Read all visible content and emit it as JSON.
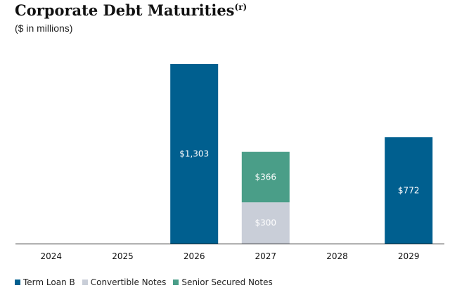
{
  "title": "Corporate Debt Maturities",
  "title_superscript": "(r)",
  "subtitle": "($ in millions)",
  "chart_data": {
    "type": "bar",
    "stacked": true,
    "categories": [
      "2024",
      "2025",
      "2026",
      "2027",
      "2028",
      "2029"
    ],
    "series": [
      {
        "name": "Term Loan B",
        "values": [
          0,
          0,
          1303,
          0,
          0,
          772
        ],
        "labels": [
          "",
          "",
          "$1,303",
          "",
          "",
          "$772"
        ],
        "color": "#005f8f"
      },
      {
        "name": "Convertible Notes",
        "values": [
          0,
          0,
          0,
          300,
          0,
          0
        ],
        "labels": [
          "",
          "",
          "",
          "$300",
          "",
          ""
        ],
        "color": "#c9ced8"
      },
      {
        "name": "Senior Secured Notes",
        "values": [
          0,
          0,
          0,
          366,
          0,
          0
        ],
        "labels": [
          "",
          "",
          "",
          "$366",
          "",
          ""
        ],
        "color": "#4a9e88"
      }
    ],
    "ylim": [
      0,
      1400
    ],
    "grid": false,
    "legend_position": "bottom-left",
    "label_color": "#ffffff"
  }
}
